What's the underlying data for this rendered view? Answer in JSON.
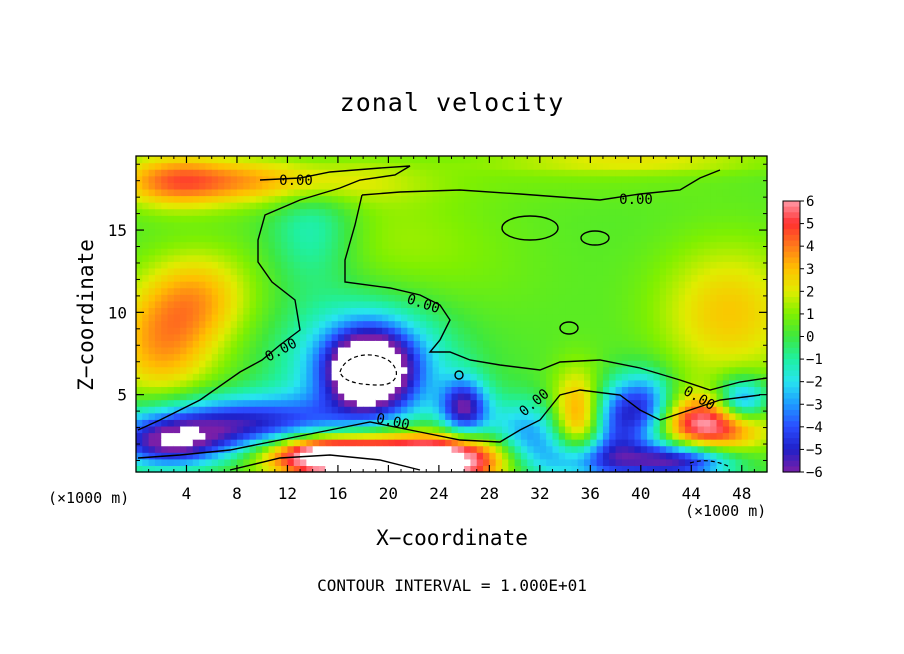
{
  "chart_data": {
    "type": "heatmap",
    "title": "zonal velocity",
    "xlabel": "X−coordinate",
    "ylabel": "Z−coordinate",
    "x_unit_left": "(×1000 m)",
    "x_unit_right": "(×1000 m)",
    "xlim": [
      0,
      50
    ],
    "ylim": [
      0.3,
      19.5
    ],
    "x_ticks": [
      4,
      8,
      12,
      16,
      20,
      24,
      28,
      32,
      36,
      40,
      44,
      48
    ],
    "y_ticks": [
      5,
      10,
      15
    ],
    "colorbar": {
      "ticks": [
        6,
        5,
        4,
        3,
        2,
        1,
        0,
        -1,
        -2,
        -3,
        -4,
        -5,
        -6
      ],
      "range": [
        -6,
        6
      ]
    },
    "contour_labels": [
      "0.00",
      "0.00",
      "0.00",
      "0.00",
      "0.00",
      "0.00",
      "0.00"
    ],
    "footer": "CONTOUR INTERVAL = 1.000E+01",
    "features": [
      {
        "x": 10,
        "z": 18,
        "value": 3.0,
        "sx": 7,
        "sz": 1.0
      },
      {
        "x": 3,
        "z": 18,
        "value": 2.5,
        "sx": 3,
        "sz": 1.2
      },
      {
        "x": 14,
        "z": 15,
        "value": -2.0,
        "sx": 2.5,
        "sz": 2.5
      },
      {
        "x": 2,
        "z": 8,
        "value": 3.0,
        "sx": 3,
        "sz": 2.5
      },
      {
        "x": 5,
        "z": 11,
        "value": 2.5,
        "sx": 3,
        "sz": 2
      },
      {
        "x": 47,
        "z": 10,
        "value": 2.5,
        "sx": 4,
        "sz": 3
      },
      {
        "x": 20,
        "z": 14,
        "value": 1.0,
        "sx": 6,
        "sz": 3
      },
      {
        "x": 18.5,
        "z": 6.5,
        "value": -8.0,
        "sx": 2.2,
        "sz": 1.6
      },
      {
        "x": 18.5,
        "z": 6.8,
        "value": -4.0,
        "sx": 4.5,
        "sz": 2.8
      },
      {
        "x": 8,
        "z": 3.2,
        "value": -5.5,
        "sx": 6,
        "sz": 1.2
      },
      {
        "x": 2.5,
        "z": 2.0,
        "value": -5.0,
        "sx": 3,
        "sz": 1
      },
      {
        "x": 20,
        "z": 1.0,
        "value": 8.0,
        "sx": 5,
        "sz": 1.2
      },
      {
        "x": 14,
        "z": 1.5,
        "value": 5.0,
        "sx": 3,
        "sz": 0.8
      },
      {
        "x": 26,
        "z": 1.2,
        "value": 3.5,
        "sx": 3,
        "sz": 1
      },
      {
        "x": 26,
        "z": 4.2,
        "value": -5.5,
        "sx": 1.3,
        "sz": 1.2
      },
      {
        "x": 31,
        "z": 2.5,
        "value": -3.5,
        "sx": 2.5,
        "sz": 1.5
      },
      {
        "x": 35,
        "z": 3.5,
        "value": 4.0,
        "sx": 1.5,
        "sz": 2
      },
      {
        "x": 38,
        "z": 3.5,
        "value": -4.0,
        "sx": 1.5,
        "sz": 1.6
      },
      {
        "x": 40.5,
        "z": 4.2,
        "value": -4.5,
        "sx": 1.5,
        "sz": 1.5
      },
      {
        "x": 45.5,
        "z": 3.2,
        "value": 6.0,
        "sx": 3,
        "sz": 1.2
      },
      {
        "x": 48,
        "z": 4.6,
        "value": -5.0,
        "sx": 1.5,
        "sz": 1
      },
      {
        "x": 36,
        "z": 1.0,
        "value": -4.0,
        "sx": 3,
        "sz": 1
      },
      {
        "x": 43,
        "z": 1.0,
        "value": -6.0,
        "sx": 3,
        "sz": 0.8
      },
      {
        "x": 36,
        "z": 18.5,
        "value": 0.5,
        "sx": 8,
        "sz": 1.2
      },
      {
        "x": 40,
        "z": 19.2,
        "value": 1.5,
        "sx": 8,
        "sz": 0.5
      },
      {
        "x": 28,
        "z": 12,
        "value": 0.2,
        "sx": 6,
        "sz": 3
      }
    ]
  }
}
